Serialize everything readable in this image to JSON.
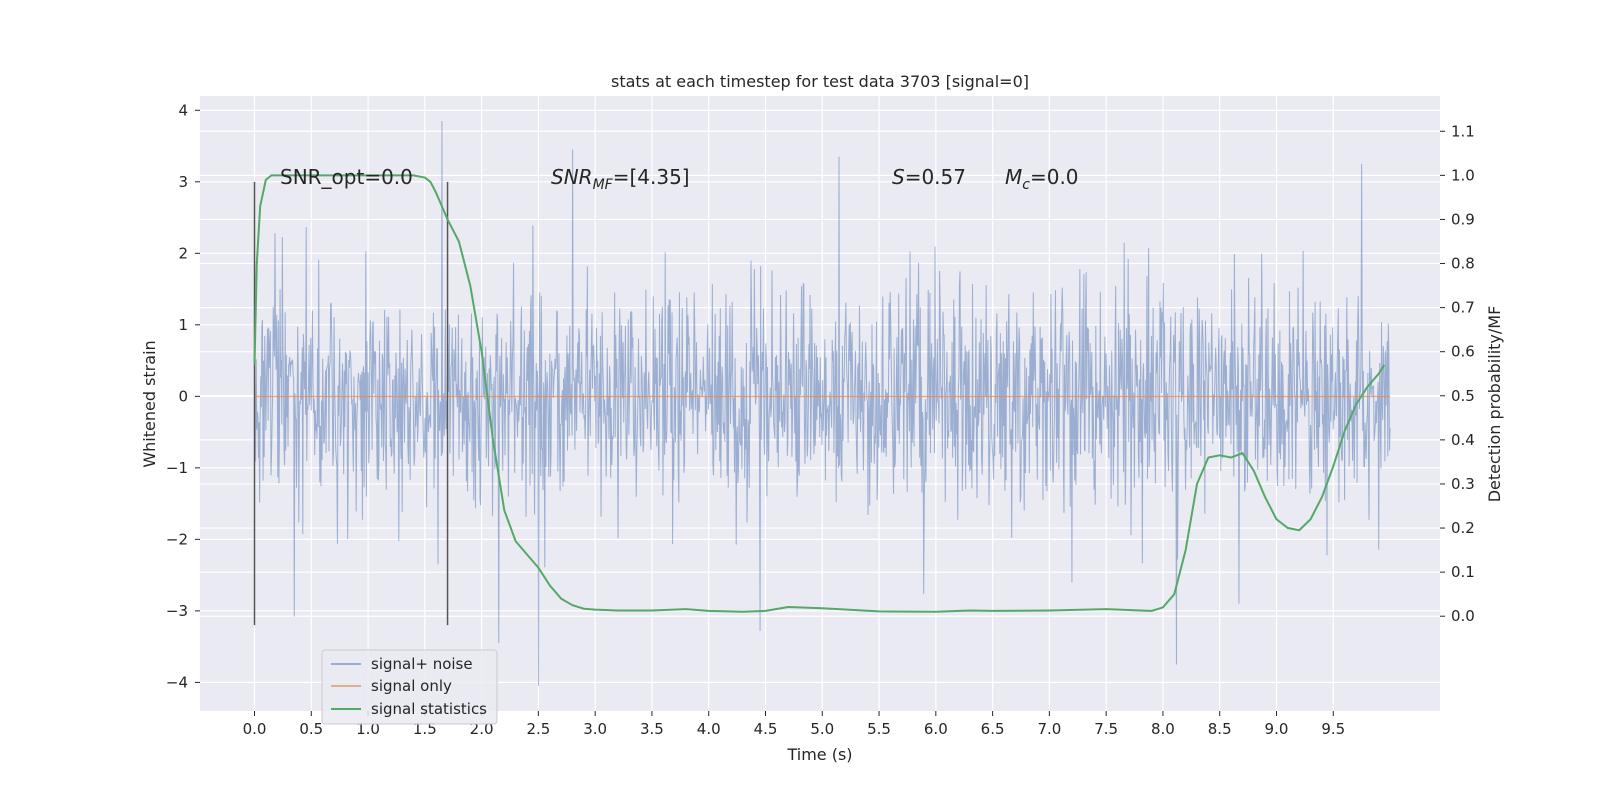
{
  "chart_data": {
    "type": "line",
    "title": "stats at each timestep for test data 3703 [signal=0]",
    "xlabel": "Time (s)",
    "ylabel": "Whitened strain",
    "ylabel_right": "Detection probability/MF",
    "xlim": [
      -0.48,
      10.44
    ],
    "ylim": [
      -4.4,
      4.2
    ],
    "ylim_right": [
      -0.215,
      1.18
    ],
    "x_ticks": [
      0.0,
      0.5,
      1.0,
      1.5,
      2.0,
      2.5,
      3.0,
      3.5,
      4.0,
      4.5,
      5.0,
      5.5,
      6.0,
      6.5,
      7.0,
      7.5,
      8.0,
      8.5,
      9.0,
      9.5
    ],
    "x_tick_labels": [
      "0.0",
      "0.5",
      "1.0",
      "1.5",
      "2.0",
      "2.5",
      "3.0",
      "3.5",
      "4.0",
      "4.5",
      "5.0",
      "5.5",
      "6.0",
      "6.5",
      "7.0",
      "7.5",
      "8.0",
      "8.5",
      "9.0",
      "9.5"
    ],
    "y_ticks": [
      -4,
      -3,
      -2,
      -1,
      0,
      1,
      2,
      3,
      4
    ],
    "y_tick_labels": [
      "−4",
      "−3",
      "−2",
      "−1",
      "0",
      "1",
      "2",
      "3",
      "4"
    ],
    "y_right_ticks": [
      0.0,
      0.1,
      0.2,
      0.3,
      0.4,
      0.5,
      0.6,
      0.7,
      0.8,
      0.9,
      1.0,
      1.1
    ],
    "y_right_tick_labels": [
      "0.0",
      "0.1",
      "0.2",
      "0.3",
      "0.4",
      "0.5",
      "0.6",
      "0.7",
      "0.8",
      "0.9",
      "1.0",
      "1.1"
    ],
    "grid": true,
    "legend_position": "lower-left",
    "annotations": {
      "snr_opt": "SNR_opt=0.0",
      "snr_mf_sym": "SNR",
      "snr_mf_sub": "MF",
      "snr_mf_val": "=[4.35]",
      "s_sym": "S",
      "s_val": "=0.57",
      "mc_sym": "M",
      "mc_sub": "c",
      "mc_val": "=0.0"
    },
    "vlines": [
      {
        "x": 0.0,
        "y0": -3.2,
        "y1": 3.0
      },
      {
        "x": 1.7,
        "y0": -3.2,
        "y1": 3.0
      }
    ],
    "colors": {
      "background": "#eaeaf2",
      "grid": "#ffffff",
      "noise": "#4c72b0",
      "signal": "#dd8452",
      "stats": "#55a868",
      "vline": "#555555"
    },
    "series": [
      {
        "name": "signal+ noise",
        "axis": "left",
        "style": "noise",
        "x_range": [
          0.0,
          10.0
        ],
        "samples": 2000,
        "sigma": 0.75,
        "seed": 3703,
        "peaks": [
          {
            "x": 1.65,
            "y": 3.85
          },
          {
            "x": 2.8,
            "y": 3.45
          },
          {
            "x": 5.15,
            "y": 3.35
          },
          {
            "x": 9.75,
            "y": 3.25
          },
          {
            "x": 2.5,
            "y": -4.05
          },
          {
            "x": 8.12,
            "y": -3.75
          },
          {
            "x": 2.15,
            "y": -3.45
          },
          {
            "x": 4.45,
            "y": -3.28
          },
          {
            "x": 0.35,
            "y": -3.08
          }
        ]
      },
      {
        "name": "signal only",
        "axis": "left",
        "x": [
          0.0,
          10.0
        ],
        "y": [
          0.0,
          0.0
        ]
      },
      {
        "name": "signal statistics",
        "axis": "right",
        "x": [
          0.0,
          0.02,
          0.05,
          0.1,
          0.15,
          0.2,
          0.3,
          0.5,
          0.8,
          1.0,
          1.2,
          1.4,
          1.5,
          1.55,
          1.6,
          1.65,
          1.7,
          1.8,
          1.9,
          2.0,
          2.1,
          2.2,
          2.3,
          2.4,
          2.5,
          2.6,
          2.7,
          2.8,
          2.9,
          3.0,
          3.2,
          3.5,
          3.8,
          4.0,
          4.3,
          4.5,
          4.7,
          5.0,
          5.5,
          6.0,
          6.3,
          6.5,
          7.0,
          7.5,
          7.9,
          8.0,
          8.1,
          8.2,
          8.3,
          8.4,
          8.5,
          8.6,
          8.7,
          8.8,
          8.9,
          9.0,
          9.1,
          9.2,
          9.3,
          9.4,
          9.5,
          9.6,
          9.7,
          9.8,
          9.9,
          9.95
        ],
        "y": [
          0.57,
          0.8,
          0.93,
          0.99,
          1.0,
          1.0,
          1.0,
          1.0,
          1.0,
          1.0,
          1.0,
          1.0,
          0.995,
          0.985,
          0.96,
          0.93,
          0.9,
          0.85,
          0.75,
          0.6,
          0.4,
          0.24,
          0.17,
          0.14,
          0.11,
          0.07,
          0.04,
          0.025,
          0.017,
          0.015,
          0.013,
          0.013,
          0.016,
          0.012,
          0.01,
          0.012,
          0.021,
          0.018,
          0.011,
          0.01,
          0.013,
          0.012,
          0.013,
          0.016,
          0.012,
          0.02,
          0.05,
          0.15,
          0.3,
          0.36,
          0.365,
          0.36,
          0.37,
          0.33,
          0.27,
          0.22,
          0.2,
          0.195,
          0.22,
          0.27,
          0.34,
          0.42,
          0.48,
          0.52,
          0.55,
          0.57
        ]
      }
    ]
  }
}
